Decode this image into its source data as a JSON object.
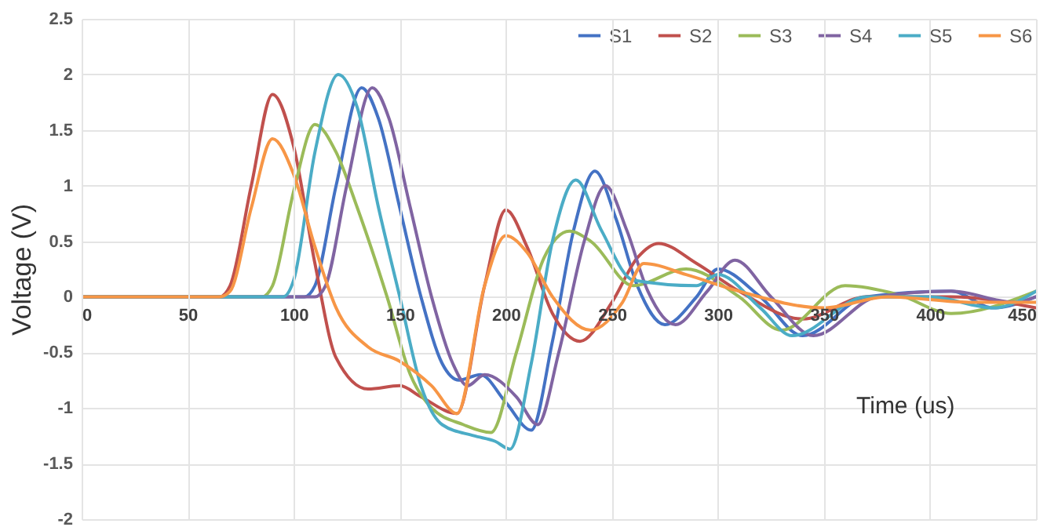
{
  "chart_data": {
    "type": "line",
    "xlabel": "Time (us)",
    "ylabel": "Voltage (V)",
    "xlim": [
      0,
      450
    ],
    "xticks": [
      0,
      50,
      100,
      150,
      200,
      250,
      300,
      350,
      400,
      450
    ],
    "ylim": [
      -2,
      2.5
    ],
    "yticks": [
      -2,
      -1.5,
      -1,
      -0.5,
      0,
      0.5,
      1,
      1.5,
      2,
      2.5
    ],
    "grid": true,
    "legend": "top right",
    "marker": "none",
    "line_style": "solid",
    "series": [
      {
        "name": "S1",
        "color": "#4472c4",
        "x": [
          0,
          105,
          110,
          120,
          132,
          140,
          150,
          160,
          170,
          178,
          188,
          200,
          212,
          222,
          232,
          242,
          252,
          262,
          275,
          290,
          300,
          320,
          340,
          370,
          410,
          430,
          450
        ],
        "values": [
          0,
          0,
          0.1,
          1.0,
          1.88,
          1.6,
          0.8,
          0,
          -0.6,
          -0.75,
          -0.7,
          -0.95,
          -1.2,
          -0.4,
          0.6,
          1.13,
          0.7,
          0.1,
          -0.25,
          0.0,
          0.25,
          0,
          -0.35,
          0,
          0.05,
          -0.1,
          0
        ]
      },
      {
        "name": "S2",
        "color": "#c0504d",
        "x": [
          0,
          65,
          70,
          80,
          90,
          100,
          110,
          120,
          135,
          150,
          160,
          177,
          190,
          200,
          210,
          222,
          235,
          250,
          262,
          272,
          290,
          310,
          340,
          370,
          410,
          450
        ],
        "values": [
          0,
          0,
          0.1,
          1.0,
          1.82,
          1.35,
          0.3,
          -0.55,
          -0.83,
          -0.8,
          -0.9,
          -1.05,
          0.1,
          0.78,
          0.45,
          -0.15,
          -0.4,
          -0.05,
          0.35,
          0.48,
          0.3,
          0.05,
          -0.2,
          0,
          0,
          -0.1
        ]
      },
      {
        "name": "S3",
        "color": "#9bbb59",
        "x": [
          0,
          85,
          90,
          100,
          110,
          120,
          130,
          144,
          155,
          165,
          180,
          193,
          205,
          218,
          230,
          240,
          260,
          285,
          310,
          330,
          360,
          385,
          410,
          450
        ],
        "values": [
          0,
          0,
          0.1,
          0.95,
          1.55,
          1.3,
          0.8,
          0,
          -0.7,
          -1.0,
          -1.15,
          -1.22,
          -0.5,
          0.35,
          0.59,
          0.5,
          0.1,
          0.25,
          0,
          -0.3,
          0.1,
          0.02,
          -0.15,
          0.05
        ]
      },
      {
        "name": "S4",
        "color": "#8064a2",
        "x": [
          0,
          110,
          115,
          125,
          137,
          145,
          155,
          165,
          175,
          182,
          190,
          205,
          215,
          225,
          237,
          247,
          257,
          267,
          280,
          295,
          308,
          325,
          345,
          375,
          410,
          440,
          450
        ],
        "values": [
          0,
          0,
          0.1,
          1.0,
          1.88,
          1.6,
          0.8,
          0,
          -0.6,
          -0.8,
          -0.7,
          -0.9,
          -1.15,
          -0.5,
          0.5,
          1.0,
          0.6,
          0.05,
          -0.25,
          0.05,
          0.33,
          0,
          -0.35,
          0,
          0.05,
          -0.05,
          0
        ]
      },
      {
        "name": "S5",
        "color": "#4bacc6",
        "x": [
          0,
          95,
          100,
          110,
          121,
          130,
          140,
          150,
          160,
          170,
          185,
          195,
          202,
          212,
          222,
          233,
          245,
          260,
          290,
          300,
          320,
          335,
          370,
          400,
          430,
          450
        ],
        "values": [
          0,
          0,
          0.15,
          1.3,
          2.0,
          1.7,
          0.8,
          0,
          -0.8,
          -1.15,
          -1.25,
          -1.3,
          -1.37,
          -0.6,
          0.5,
          1.05,
          0.6,
          0.15,
          0.1,
          0.2,
          -0.1,
          -0.35,
          0,
          0,
          -0.1,
          0.05
        ]
      },
      {
        "name": "S6",
        "color": "#f79646",
        "x": [
          0,
          65,
          70,
          80,
          90,
          100,
          110,
          120,
          135,
          150,
          165,
          177,
          190,
          200,
          210,
          222,
          240,
          255,
          265,
          285,
          310,
          350,
          380,
          420,
          450
        ],
        "values": [
          0,
          0,
          0.05,
          0.8,
          1.42,
          1.1,
          0.45,
          -0.1,
          -0.45,
          -0.58,
          -0.8,
          -1.05,
          0.1,
          0.55,
          0.4,
          0,
          -0.3,
          -0.05,
          0.3,
          0.2,
          0.05,
          -0.1,
          0,
          -0.05,
          -0.05
        ]
      }
    ]
  }
}
